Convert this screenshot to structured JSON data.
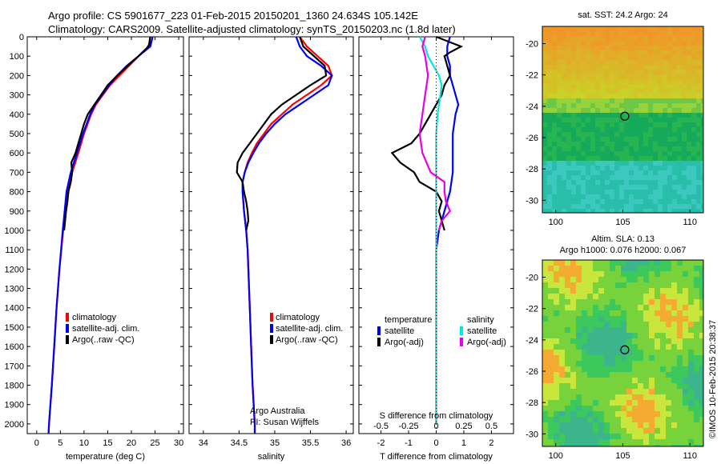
{
  "header": {
    "line1": "Argo profile: CS 5901677_223 01-Feb-2015 20150201_1360 24.634S 105.142E",
    "line2": "Climatology: CARS2009. Satellite-adjusted climatology: synTS_20150203.nc (1.8d later)"
  },
  "colors": {
    "climatology": "#ff0000",
    "satellite": "#0000ff",
    "argo": "#000000",
    "sat_salinity": "#00e6e6",
    "argo_salinity": "#e600e6"
  },
  "depth_axis": {
    "ticks": [
      0,
      100,
      200,
      300,
      400,
      500,
      600,
      700,
      800,
      900,
      1000,
      1100,
      1200,
      1300,
      1400,
      1500,
      1600,
      1700,
      1800,
      1900,
      2000
    ],
    "range": [
      0,
      2050
    ]
  },
  "chart_data": [
    {
      "type": "line",
      "name": "temperature",
      "xlabel": "temperature (deg C)",
      "ylabel": "",
      "xlim": [
        -2,
        31
      ],
      "ylim": [
        2050,
        0
      ],
      "xticks": [
        0,
        5,
        10,
        15,
        20,
        25,
        30
      ],
      "legend": [
        "climatology",
        "satellite-adj. clim.",
        "Argo(..raw -QC)"
      ],
      "series": [
        {
          "name": "climatology",
          "color": "#ff0000",
          "depth": [
            0,
            50,
            100,
            150,
            200,
            250,
            300,
            350,
            400,
            500,
            600,
            700,
            800,
            900,
            1000,
            1200,
            1400,
            1600,
            1800,
            2000,
            2050
          ],
          "values": [
            24.0,
            23.6,
            21.5,
            19.5,
            17.5,
            15.5,
            14.0,
            12.5,
            11.5,
            10.0,
            8.8,
            7.5,
            6.5,
            6.0,
            5.6,
            4.8,
            4.2,
            3.7,
            3.2,
            2.6,
            2.5
          ]
        },
        {
          "name": "satellite-adj. clim.",
          "color": "#0000ff",
          "depth": [
            0,
            50,
            100,
            150,
            200,
            250,
            300,
            350,
            400,
            500,
            600,
            700,
            800,
            900,
            1000,
            1200,
            1400,
            1600,
            1800,
            2000,
            2050
          ],
          "values": [
            24.5,
            24.0,
            21.5,
            19.0,
            17.0,
            15.3,
            13.8,
            12.3,
            11.3,
            9.8,
            8.5,
            7.2,
            6.3,
            5.9,
            5.5,
            4.8,
            4.2,
            3.7,
            3.2,
            2.6,
            2.5
          ]
        },
        {
          "name": "Argo(..raw -QC)",
          "color": "#000000",
          "depth": [
            0,
            40,
            60,
            100,
            150,
            200,
            250,
            300,
            350,
            400,
            450,
            500,
            550,
            600,
            650,
            700,
            750,
            800,
            850,
            900,
            950,
            1000
          ],
          "values": [
            24.0,
            23.8,
            23.2,
            21.5,
            19.2,
            17.0,
            15.0,
            13.6,
            12.2,
            10.8,
            10.0,
            9.4,
            8.8,
            8.2,
            7.3,
            7.5,
            7.2,
            6.7,
            6.5,
            6.2,
            6.0,
            5.8
          ]
        }
      ]
    },
    {
      "type": "line",
      "name": "salinity",
      "xlabel": "salinity",
      "ylabel": "",
      "xlim": [
        33.8,
        36.1
      ],
      "ylim": [
        2050,
        0
      ],
      "xticks": [
        34,
        34.5,
        35,
        35.5,
        36
      ],
      "legend": [
        "climatology",
        "satellite-adj. clim.",
        "Argo(..raw -QC)"
      ],
      "annotation": [
        "Argo Australia",
        "PI: Susan Wijffels"
      ],
      "series": [
        {
          "name": "climatology",
          "color": "#ff0000",
          "depth": [
            0,
            50,
            100,
            150,
            200,
            250,
            300,
            350,
            400,
            450,
            500,
            550,
            600,
            650,
            700,
            750,
            800,
            850,
            900,
            1000,
            1100,
            1200,
            1400,
            1600,
            1800,
            2000,
            2050
          ],
          "values": [
            35.35,
            35.45,
            35.6,
            35.75,
            35.8,
            35.65,
            35.45,
            35.25,
            35.1,
            34.95,
            34.85,
            34.75,
            34.68,
            34.62,
            34.58,
            34.55,
            34.55,
            34.56,
            34.57,
            34.6,
            34.62,
            34.63,
            34.65,
            34.67,
            34.69,
            34.72,
            34.72
          ]
        },
        {
          "name": "satellite-adj. clim.",
          "color": "#0000ff",
          "depth": [
            0,
            50,
            100,
            150,
            200,
            250,
            300,
            350,
            400,
            450,
            500,
            550,
            600,
            650,
            700,
            750,
            800,
            850,
            900,
            1000,
            1100,
            1200,
            1400,
            1600,
            1800,
            2000,
            2050
          ],
          "values": [
            35.3,
            35.35,
            35.45,
            35.65,
            35.8,
            35.75,
            35.55,
            35.35,
            35.15,
            35.0,
            34.88,
            34.78,
            34.7,
            34.63,
            34.58,
            34.55,
            34.55,
            34.56,
            34.57,
            34.6,
            34.62,
            34.63,
            34.65,
            34.67,
            34.69,
            34.72,
            34.72
          ]
        },
        {
          "name": "Argo(..raw -QC)",
          "color": "#000000",
          "depth": [
            0,
            50,
            100,
            150,
            200,
            250,
            300,
            350,
            400,
            450,
            500,
            550,
            600,
            650,
            700,
            750,
            800,
            850,
            900,
            950,
            1000
          ],
          "values": [
            35.35,
            35.4,
            35.55,
            35.7,
            35.72,
            35.5,
            35.3,
            35.1,
            34.95,
            34.85,
            34.75,
            34.65,
            34.55,
            34.48,
            34.47,
            34.55,
            34.57,
            34.6,
            34.62,
            34.63,
            34.6
          ]
        }
      ]
    },
    {
      "type": "line",
      "name": "differences",
      "xlabel": "T difference from climatology",
      "xlabel2": "S difference from climatology",
      "xlim": [
        -2.8,
        2.8
      ],
      "ylim": [
        2050,
        0
      ],
      "xticks": [
        -2,
        -1,
        0,
        1,
        2
      ],
      "xticks2": [
        "-0.5",
        "-0.25",
        "0",
        "0.25",
        "0.5"
      ],
      "legend_title_t": "temperature",
      "legend_title_s": "salinity",
      "legend_t": [
        "satellite",
        "Argo(-adj)"
      ],
      "legend_s": [
        "satellite",
        "Argo(-adj)"
      ],
      "series": [
        {
          "name": "temperature satellite",
          "color": "#0000ff",
          "depth": [
            0,
            50,
            100,
            150,
            200,
            250,
            300,
            350,
            400,
            500,
            600,
            700,
            800,
            900,
            1000,
            1100,
            1200,
            1400,
            1600,
            1800,
            2000
          ],
          "values": [
            0.5,
            0.4,
            0.4,
            0.5,
            0.5,
            0.6,
            0.7,
            0.8,
            0.7,
            0.6,
            0.6,
            0.6,
            0.5,
            0.3,
            0.1,
            0.0,
            0.0,
            0.0,
            0.0,
            0.0,
            0.0
          ]
        },
        {
          "name": "temperature Argo(-adj)",
          "color": "#000000",
          "depth": [
            0,
            50,
            80,
            100,
            150,
            200,
            250,
            300,
            350,
            400,
            450,
            500,
            550,
            600,
            650,
            700,
            750,
            800,
            850,
            900,
            950,
            1000
          ],
          "values": [
            0.0,
            0.9,
            0.5,
            0.3,
            0.4,
            0.5,
            0.3,
            0.2,
            0.0,
            -0.2,
            -0.4,
            -0.6,
            -0.9,
            -1.6,
            -1.3,
            -0.8,
            -0.6,
            0.0,
            0.2,
            0.1,
            0.2,
            0.3
          ]
        },
        {
          "name": "salinity satellite",
          "color": "#00e6e6",
          "depth": [
            0,
            50,
            100,
            150,
            200,
            250,
            300,
            400,
            500,
            600,
            700,
            800,
            900,
            1000,
            1200,
            1400,
            1600,
            1800,
            2000
          ],
          "values": [
            -0.6,
            -0.4,
            -0.3,
            -0.1,
            0.1,
            0.2,
            0.15,
            0.05,
            0.0,
            0.0,
            0.0,
            0.0,
            0.0,
            0.0,
            0.0,
            0.0,
            0.0,
            0.0,
            0.0
          ]
        },
        {
          "name": "salinity Argo(-adj)",
          "color": "#e600e6",
          "depth": [
            0,
            50,
            100,
            200,
            300,
            400,
            500,
            600,
            700,
            750,
            800,
            850,
            900,
            950,
            1000
          ],
          "values": [
            -0.4,
            -0.5,
            -0.4,
            -0.3,
            -0.4,
            -0.5,
            -0.6,
            -0.5,
            -0.2,
            0.3,
            0.3,
            0.35,
            0.5,
            0.2,
            0.1
          ]
        }
      ]
    },
    {
      "type": "heatmap",
      "name": "sst-map",
      "title": "sat. SST: 24.2  Argo: 24",
      "xticks": [
        100,
        105,
        110
      ],
      "yticks": [
        -20,
        -22,
        -24,
        -26,
        -28,
        -30
      ],
      "xlim": [
        99,
        111
      ],
      "ylim": [
        -30.8,
        -18.9
      ],
      "marker": {
        "lon": 105.142,
        "lat": -24.634
      }
    },
    {
      "type": "heatmap",
      "name": "sla-map",
      "title": "Altim. SLA: 0.13",
      "subtitle": "Argo h1000: 0.076 h2000: 0.067",
      "xticks": [
        100,
        105,
        110
      ],
      "yticks": [
        -20,
        -22,
        -24,
        -26,
        -28,
        -30
      ],
      "xlim": [
        99,
        111
      ],
      "ylim": [
        -30.8,
        -18.9
      ],
      "marker": {
        "lon": 105.142,
        "lat": -24.634
      }
    }
  ],
  "footer": {
    "stamp": "©IMOS 10-Feb-2015 20:38:37"
  }
}
